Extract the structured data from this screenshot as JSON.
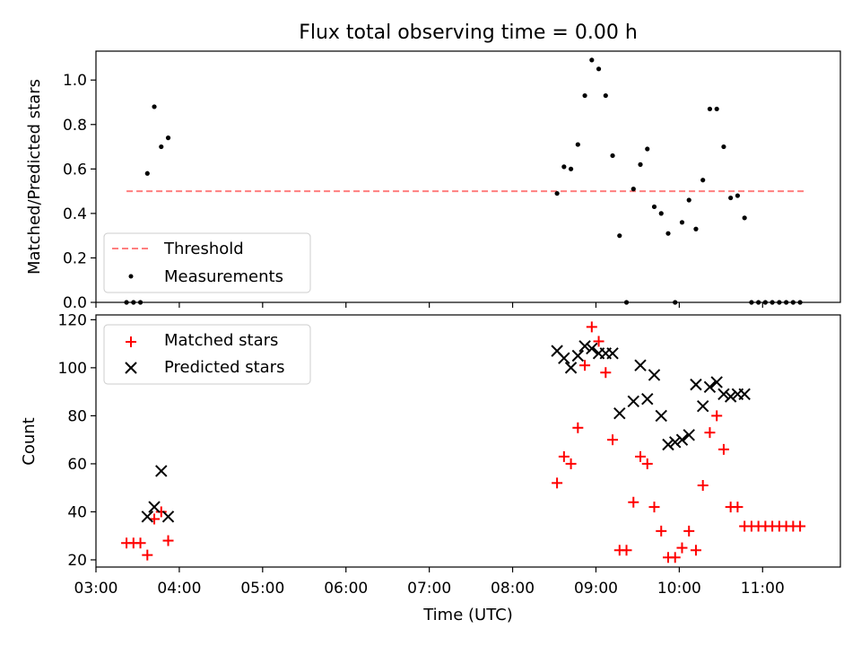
{
  "chart_data": [
    {
      "type": "scatter",
      "title": "Flux total observing time = 0.00 h",
      "xlabel": "",
      "ylabel": "Matched/Predicted stars",
      "x_axis_type": "time",
      "xlim": [
        "03:00",
        "11:56"
      ],
      "ylim": [
        0,
        1.13
      ],
      "yticks": [
        0.0,
        0.2,
        0.4,
        0.6,
        0.8,
        1.0
      ],
      "ytick_labels": [
        "0.0",
        "0.2",
        "0.4",
        "0.6",
        "0.8",
        "1.0"
      ],
      "legend_position": "lower-left",
      "series": [
        {
          "name": "Threshold",
          "type": "line",
          "style": "dashed",
          "color": "#ff7f7f",
          "x": [
            "03:22",
            "11:30"
          ],
          "y": [
            0.5,
            0.5
          ]
        },
        {
          "name": "Measurements",
          "type": "scatter",
          "marker": "dot",
          "color": "#000000",
          "x": [
            "03:22",
            "03:27",
            "03:32",
            "03:37",
            "03:42",
            "03:47",
            "03:52",
            "08:32",
            "08:37",
            "08:42",
            "08:47",
            "08:52",
            "08:57",
            "09:02",
            "09:07",
            "09:12",
            "09:17",
            "09:22",
            "09:27",
            "09:32",
            "09:37",
            "09:42",
            "09:47",
            "09:52",
            "09:57",
            "10:02",
            "10:07",
            "10:12",
            "10:17",
            "10:22",
            "10:27",
            "10:32",
            "10:37",
            "10:42",
            "10:47",
            "10:52",
            "10:57",
            "11:02",
            "11:07",
            "11:12",
            "11:17",
            "11:22",
            "11:27"
          ],
          "y": [
            0.0,
            0.0,
            0.0,
            0.58,
            0.88,
            0.7,
            0.74,
            0.49,
            0.61,
            0.6,
            0.71,
            0.93,
            1.09,
            1.05,
            0.93,
            0.66,
            0.3,
            0.0,
            0.51,
            0.62,
            0.69,
            0.43,
            0.4,
            0.31,
            0.0,
            0.36,
            0.46,
            0.33,
            0.55,
            0.87,
            0.87,
            0.7,
            0.47,
            0.48,
            0.38,
            0.0,
            0.0,
            0.0,
            0.0,
            0.0,
            0.0,
            0.0,
            0.0
          ]
        }
      ]
    },
    {
      "type": "scatter",
      "title": "",
      "xlabel": "Time (UTC)",
      "ylabel": "Count",
      "x_axis_type": "time",
      "xlim": [
        "03:00",
        "11:56"
      ],
      "ylim": [
        17,
        122
      ],
      "xticks": [
        "03:00",
        "04:00",
        "05:00",
        "06:00",
        "07:00",
        "08:00",
        "09:00",
        "10:00",
        "11:00"
      ],
      "yticks": [
        20,
        40,
        60,
        80,
        100,
        120
      ],
      "ytick_labels": [
        "20",
        "40",
        "60",
        "80",
        "100",
        "120"
      ],
      "legend_position": "upper-left",
      "series": [
        {
          "name": "Matched stars",
          "type": "scatter",
          "marker": "plus",
          "color": "#ff0000",
          "x": [
            "03:22",
            "03:27",
            "03:32",
            "03:37",
            "03:42",
            "03:47",
            "03:52",
            "08:32",
            "08:37",
            "08:42",
            "08:47",
            "08:52",
            "08:57",
            "09:02",
            "09:07",
            "09:12",
            "09:17",
            "09:22",
            "09:27",
            "09:32",
            "09:37",
            "09:42",
            "09:47",
            "09:52",
            "09:57",
            "10:02",
            "10:07",
            "10:12",
            "10:17",
            "10:22",
            "10:27",
            "10:32",
            "10:37",
            "10:42",
            "10:47",
            "10:52",
            "10:57",
            "11:02",
            "11:07",
            "11:12",
            "11:17",
            "11:22",
            "11:27"
          ],
          "y": [
            27,
            27,
            27,
            22,
            37,
            40,
            28,
            52,
            63,
            60,
            75,
            101,
            117,
            111,
            98,
            70,
            24,
            24,
            44,
            63,
            60,
            42,
            32,
            21,
            21,
            25,
            32,
            24,
            51,
            73,
            80,
            66,
            42,
            42,
            34,
            34,
            34,
            34,
            34,
            34,
            34,
            34,
            34
          ]
        },
        {
          "name": "Predicted stars",
          "type": "scatter",
          "marker": "x",
          "color": "#000000",
          "x": [
            "03:37",
            "03:42",
            "03:47",
            "03:52",
            "08:32",
            "08:37",
            "08:42",
            "08:47",
            "08:52",
            "08:57",
            "09:02",
            "09:07",
            "09:12",
            "09:17",
            "09:27",
            "09:32",
            "09:37",
            "09:42",
            "09:47",
            "09:52",
            "09:57",
            "10:02",
            "10:07",
            "10:12",
            "10:17",
            "10:22",
            "10:27",
            "10:32",
            "10:37",
            "10:42",
            "10:47"
          ],
          "y": [
            38,
            42,
            57,
            38,
            107,
            104,
            100,
            105,
            109,
            108,
            106,
            106,
            106,
            81,
            86,
            101,
            87,
            97,
            80,
            68,
            69,
            70,
            72,
            93,
            84,
            92,
            94,
            89,
            88,
            89,
            89
          ]
        }
      ]
    }
  ]
}
